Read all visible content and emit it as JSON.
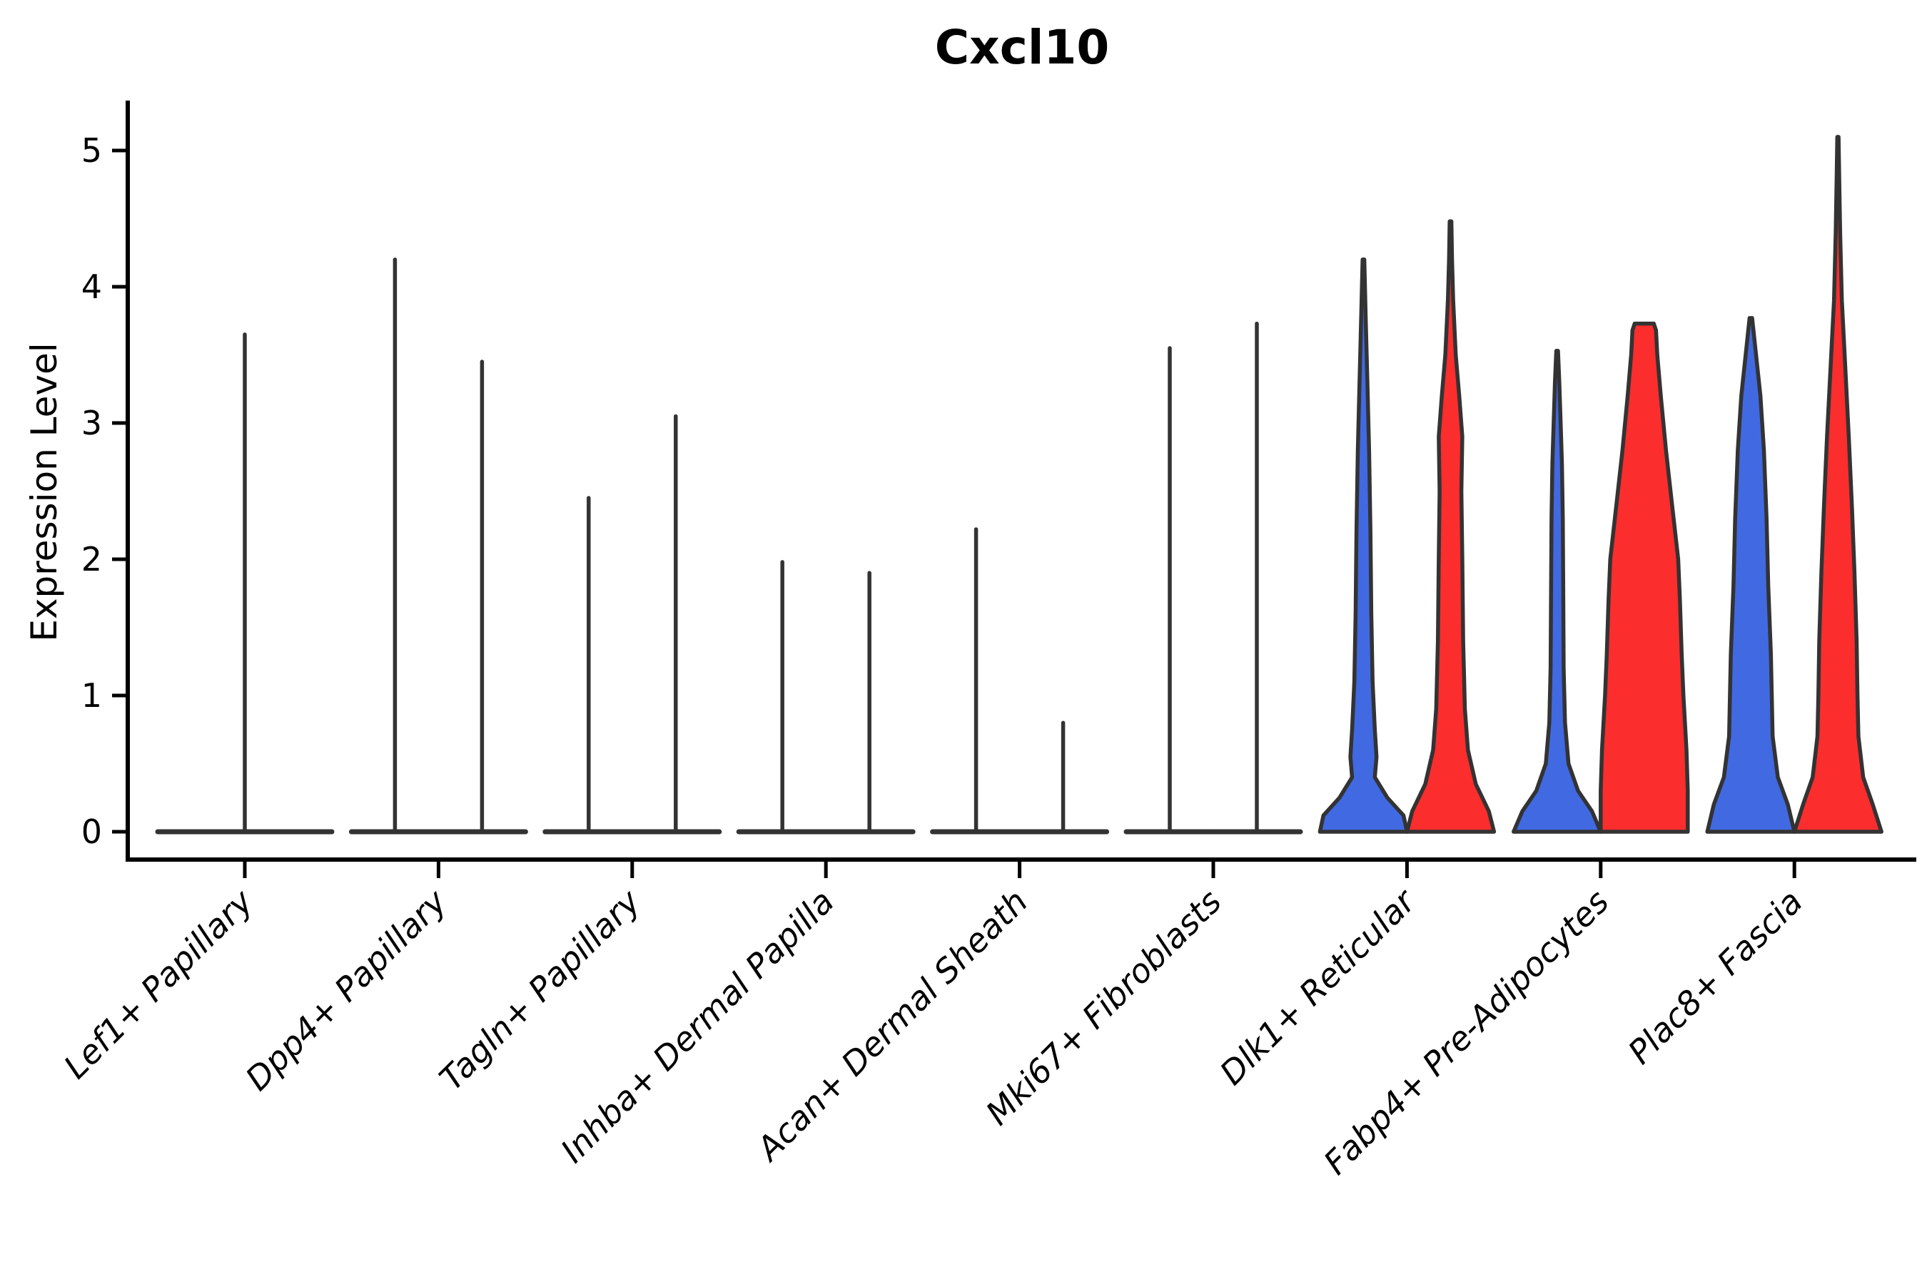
{
  "title": "Cxcl10",
  "y_axis": {
    "label": "Expression Level"
  },
  "colors": {
    "group_blue": "#4169E1",
    "group_red": "#FB2D2D",
    "violin_outline": "#333333",
    "axis": "#000000",
    "background": "#FFFFFF"
  },
  "chart_data": {
    "type": "violin",
    "title": "Cxcl10",
    "xlabel": "",
    "ylabel": "Expression Level",
    "ylim": [
      0,
      5.4
    ],
    "yticks": [
      "0",
      "1",
      "2",
      "3",
      "4",
      "5"
    ],
    "grid": false,
    "legend": "none",
    "x_label_rotation_deg": 45,
    "categories": [
      "Lef1+ Papillary",
      "Dpp4+ Papillary",
      "Tagln+ Papillary",
      "Inhba+ Dermal Papilla",
      "Acan+ Dermal Sheath",
      "Mki67+ Fibroblasts",
      "Dlk1+ Reticular",
      "Fabp4+ Pre-Adipocytes",
      "Plac8+ Fascia"
    ],
    "series": [
      {
        "name": "group-blue",
        "color": "#4169E1",
        "max_expression": [
          3.65,
          4.2,
          2.45,
          1.98,
          2.22,
          3.55,
          4.2,
          3.53,
          3.77
        ]
      },
      {
        "name": "group-red",
        "color": "#FB2D2D",
        "max_expression": [
          null,
          3.45,
          3.05,
          1.9,
          0.8,
          3.73,
          4.48,
          3.73,
          5.1
        ]
      }
    ],
    "violins": [
      {
        "category": "Lef1+ Papillary",
        "items": [
          {
            "group": "blue",
            "filled": false,
            "max": 3.65,
            "span": 2
          }
        ]
      },
      {
        "category": "Dpp4+ Papillary",
        "items": [
          {
            "group": "blue",
            "filled": false,
            "max": 4.2
          },
          {
            "group": "red",
            "filled": false,
            "max": 3.45
          }
        ]
      },
      {
        "category": "Tagln+ Papillary",
        "items": [
          {
            "group": "blue",
            "filled": false,
            "max": 2.45
          },
          {
            "group": "red",
            "filled": false,
            "max": 3.05
          }
        ]
      },
      {
        "category": "Inhba+ Dermal Papilla",
        "items": [
          {
            "group": "blue",
            "filled": false,
            "max": 1.98
          },
          {
            "group": "red",
            "filled": false,
            "max": 1.9
          }
        ]
      },
      {
        "category": "Acan+ Dermal Sheath",
        "items": [
          {
            "group": "blue",
            "filled": false,
            "max": 2.22
          },
          {
            "group": "red",
            "filled": false,
            "max": 0.8
          }
        ]
      },
      {
        "category": "Mki67+ Fibroblasts",
        "items": [
          {
            "group": "blue",
            "filled": false,
            "max": 3.55
          },
          {
            "group": "red",
            "filled": false,
            "max": 3.73
          }
        ]
      },
      {
        "category": "Dlk1+ Reticular",
        "items": [
          {
            "group": "blue",
            "filled": true,
            "max": 4.2,
            "profile": [
              [
                0,
                1.0
              ],
              [
                0.12,
                0.92
              ],
              [
                0.25,
                0.55
              ],
              [
                0.4,
                0.26
              ],
              [
                0.55,
                0.3
              ],
              [
                0.75,
                0.26
              ],
              [
                1.1,
                0.21
              ],
              [
                1.6,
                0.18
              ],
              [
                2.2,
                0.16
              ],
              [
                2.8,
                0.13
              ],
              [
                3.3,
                0.09
              ],
              [
                3.8,
                0.05
              ],
              [
                4.2,
                0.02
              ]
            ]
          },
          {
            "group": "red",
            "filled": true,
            "max": 4.48,
            "profile": [
              [
                0,
                1.0
              ],
              [
                0.15,
                0.88
              ],
              [
                0.35,
                0.58
              ],
              [
                0.6,
                0.4
              ],
              [
                0.9,
                0.33
              ],
              [
                1.4,
                0.29
              ],
              [
                2.0,
                0.27
              ],
              [
                2.5,
                0.25
              ],
              [
                2.9,
                0.27
              ],
              [
                3.2,
                0.2
              ],
              [
                3.5,
                0.12
              ],
              [
                3.9,
                0.06
              ],
              [
                4.2,
                0.035
              ],
              [
                4.48,
                0.02
              ]
            ]
          }
        ]
      },
      {
        "category": "Fabp4+ Pre-Adipocytes",
        "items": [
          {
            "group": "blue",
            "filled": true,
            "max": 3.53,
            "profile": [
              [
                0,
                1.0
              ],
              [
                0.15,
                0.8
              ],
              [
                0.3,
                0.48
              ],
              [
                0.5,
                0.26
              ],
              [
                0.8,
                0.18
              ],
              [
                1.2,
                0.15
              ],
              [
                1.8,
                0.14
              ],
              [
                2.3,
                0.13
              ],
              [
                2.7,
                0.11
              ],
              [
                3.0,
                0.08
              ],
              [
                3.3,
                0.05
              ],
              [
                3.53,
                0.02
              ]
            ]
          },
          {
            "group": "red",
            "filled": true,
            "max": 3.73,
            "profile": [
              [
                0,
                1.0
              ],
              [
                0.3,
                1.0
              ],
              [
                0.6,
                0.97
              ],
              [
                1.0,
                0.9
              ],
              [
                1.3,
                0.86
              ],
              [
                1.7,
                0.82
              ],
              [
                2.0,
                0.78
              ],
              [
                2.4,
                0.64
              ],
              [
                2.8,
                0.5
              ],
              [
                3.2,
                0.38
              ],
              [
                3.5,
                0.3
              ],
              [
                3.68,
                0.27
              ],
              [
                3.73,
                0.22
              ]
            ]
          }
        ]
      },
      {
        "category": "Plac8+ Fascia",
        "items": [
          {
            "group": "blue",
            "filled": true,
            "max": 3.77,
            "profile": [
              [
                0,
                1.0
              ],
              [
                0.2,
                0.85
              ],
              [
                0.4,
                0.62
              ],
              [
                0.7,
                0.5
              ],
              [
                1.0,
                0.48
              ],
              [
                1.3,
                0.46
              ],
              [
                1.8,
                0.4
              ],
              [
                2.3,
                0.36
              ],
              [
                2.8,
                0.3
              ],
              [
                3.2,
                0.22
              ],
              [
                3.5,
                0.12
              ],
              [
                3.77,
                0.03
              ]
            ]
          },
          {
            "group": "red",
            "filled": true,
            "max": 5.1,
            "profile": [
              [
                0,
                1.0
              ],
              [
                0.2,
                0.8
              ],
              [
                0.4,
                0.58
              ],
              [
                0.7,
                0.47
              ],
              [
                1.0,
                0.45
              ],
              [
                1.4,
                0.43
              ],
              [
                1.9,
                0.38
              ],
              [
                2.4,
                0.32
              ],
              [
                2.9,
                0.25
              ],
              [
                3.4,
                0.17
              ],
              [
                3.9,
                0.09
              ],
              [
                4.4,
                0.05
              ],
              [
                4.8,
                0.03
              ],
              [
                5.1,
                0.015
              ]
            ]
          }
        ]
      }
    ]
  }
}
